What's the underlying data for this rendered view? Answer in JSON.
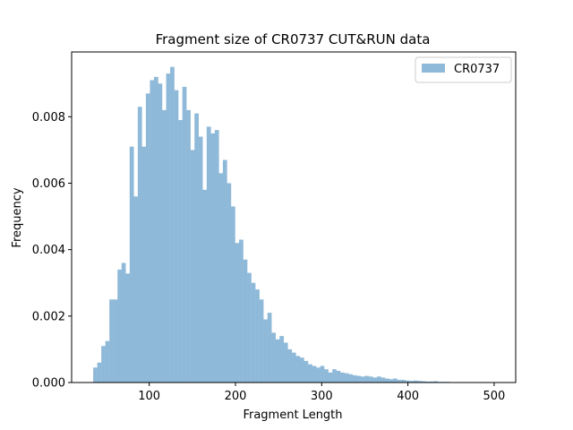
{
  "chart_data": {
    "type": "bar",
    "title": "Fragment size of CR0737 CUT&RUN data",
    "xlabel": "Fragment Length",
    "ylabel": "Frequency",
    "xlim": [
      10,
      525
    ],
    "ylim": [
      0,
      0.00995
    ],
    "xticks": [
      100,
      200,
      300,
      400,
      500
    ],
    "xtick_labels": [
      "100",
      "200",
      "300",
      "400",
      "500"
    ],
    "yticks": [
      0.0,
      0.002,
      0.004,
      0.006,
      0.008
    ],
    "ytick_labels": [
      "0.000",
      "0.002",
      "0.004",
      "0.006",
      "0.008"
    ],
    "legend": {
      "position": "upper-right",
      "entries": [
        "CR0737"
      ]
    },
    "grid": false,
    "series": [
      {
        "name": "CR0737",
        "color": "#8fb9d8",
        "bin_start": 35,
        "bin_width": 4.7,
        "values": [
          0.00045,
          0.0006,
          0.0011,
          0.00125,
          0.0025,
          0.0025,
          0.0034,
          0.0036,
          0.00328,
          0.0071,
          0.0056,
          0.0083,
          0.0071,
          0.0087,
          0.0091,
          0.0092,
          0.009,
          0.0082,
          0.0093,
          0.0095,
          0.0088,
          0.0079,
          0.0089,
          0.0082,
          0.007,
          0.0081,
          0.0074,
          0.0058,
          0.0077,
          0.0075,
          0.0076,
          0.0063,
          0.0067,
          0.006,
          0.0053,
          0.0042,
          0.0043,
          0.0037,
          0.0033,
          0.003,
          0.0028,
          0.0025,
          0.0019,
          0.0021,
          0.0015,
          0.0013,
          0.0014,
          0.0012,
          0.001,
          0.0009,
          0.0008,
          0.00075,
          0.00065,
          0.00055,
          0.0005,
          0.00045,
          0.0005,
          0.0004,
          0.0003,
          0.0004,
          0.00035,
          0.0003,
          0.00028,
          0.00025,
          0.00022,
          0.0002,
          0.00018,
          0.0002,
          0.00018,
          0.00015,
          0.00018,
          0.00015,
          0.00012,
          0.0001,
          0.00012,
          8e-05,
          8e-05,
          6e-05,
          5e-05,
          6e-05,
          5e-05,
          4e-05,
          3e-05,
          3e-05,
          4e-05,
          2e-05,
          2e-05,
          2e-05,
          1e-05,
          1e-05,
          1e-05,
          1e-05,
          1e-05,
          0.0,
          0.0,
          1e-05,
          0.0,
          0.0,
          0.0,
          0.0,
          0.0,
          0.0,
          0.0,
          0.0,
          0.0,
          0.0,
          0.0,
          0.0,
          0.0,
          0.0,
          0.0
        ]
      }
    ]
  }
}
